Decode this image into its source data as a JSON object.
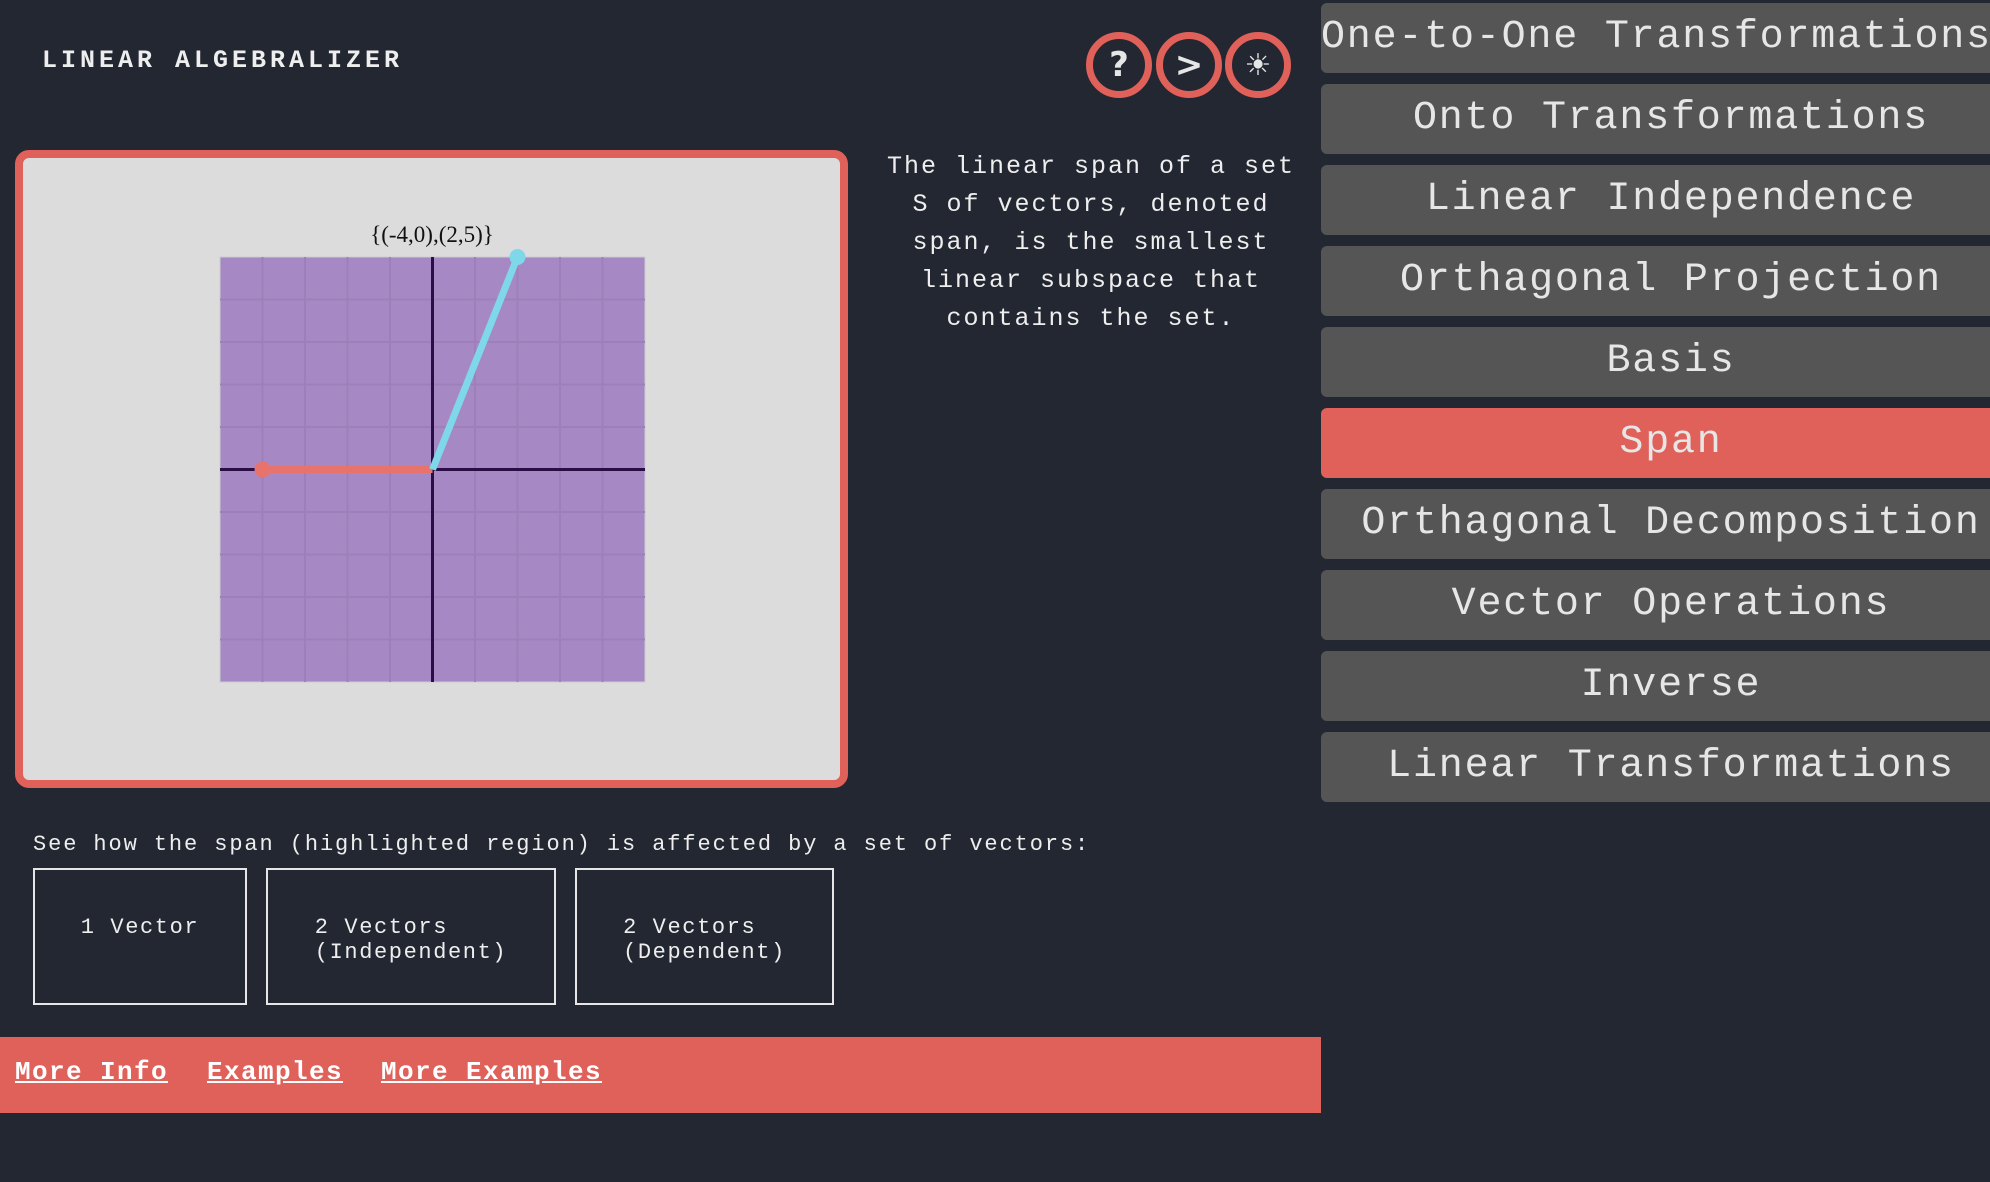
{
  "header": {
    "title": "LINEAR ALGEBRALIZER",
    "icons": [
      {
        "name": "help-icon",
        "glyph": "?"
      },
      {
        "name": "next-icon",
        "glyph": ">"
      },
      {
        "name": "theme-toggle-icon",
        "glyph": "☀"
      }
    ]
  },
  "colors": {
    "accent": "#e0605a",
    "background": "#222731",
    "sidebar_item": "#555555",
    "span_region": "#a688c4",
    "vector1": "#e8736d",
    "vector2": "#7fd8ea"
  },
  "chart_data": {
    "type": "vector-plot",
    "title": "{(-4,0),(2,5)}",
    "xlim": [
      -5,
      5
    ],
    "ylim": [
      -5,
      5
    ],
    "grid": true,
    "span_region": "entire plane",
    "vectors": [
      {
        "x": -4,
        "y": 0,
        "color": "#e8736d"
      },
      {
        "x": 2,
        "y": 5,
        "color": "#7fd8ea"
      }
    ]
  },
  "description": "The linear span of a set S of vectors, denoted span, is the smallest linear subspace that contains the set.",
  "sidebar": {
    "items": [
      {
        "label": "One-to-One Transformations",
        "active": false
      },
      {
        "label": "Onto Transformations",
        "active": false
      },
      {
        "label": "Linear Independence",
        "active": false
      },
      {
        "label": "Orthagonal Projection",
        "active": false
      },
      {
        "label": "Basis",
        "active": false
      },
      {
        "label": "Span",
        "active": true
      },
      {
        "label": "Orthagonal Decomposition",
        "active": false
      },
      {
        "label": "Vector Operations",
        "active": false
      },
      {
        "label": "Inverse",
        "active": false
      },
      {
        "label": "Linear Transformations",
        "active": false
      }
    ]
  },
  "examples": {
    "prompt": "See how the span (highlighted region) is affected by a set of vectors:",
    "buttons": [
      "1 Vector",
      "2 Vectors\n(Independent)",
      "2 Vectors\n(Dependent)"
    ]
  },
  "footer": {
    "links": [
      "More Info",
      "Examples",
      "More Examples"
    ]
  }
}
